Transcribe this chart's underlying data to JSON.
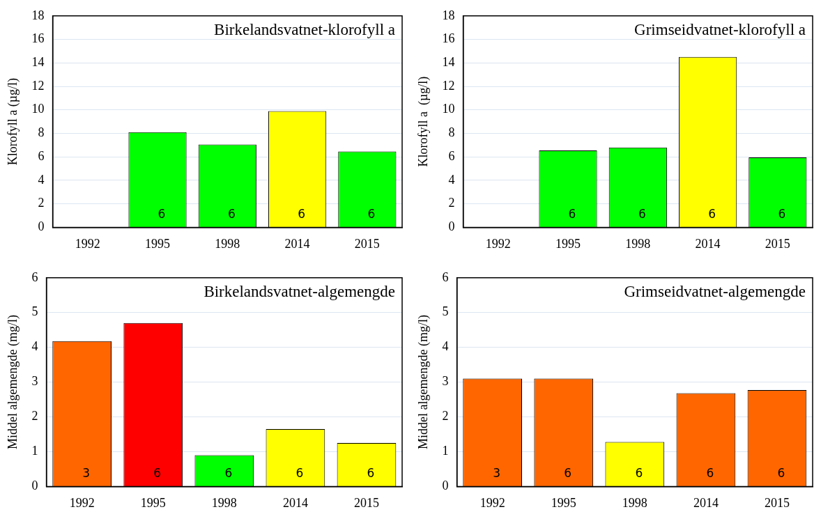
{
  "chart_data": [
    {
      "type": "bar",
      "title": "Birkelandsvatnet-klorofyll a",
      "ylabel": "Klorofyll a (µg/l)",
      "categories": [
        "1992",
        "1995",
        "1998",
        "2014",
        "2015"
      ],
      "values": [
        null,
        8.1,
        7.05,
        9.9,
        6.45
      ],
      "colors": [
        "#00ff00",
        "#00ff00",
        "#00ff00",
        "#ffff00",
        "#00ff00"
      ],
      "ylim": [
        0,
        18
      ],
      "yticks": [
        0,
        2,
        4,
        6,
        8,
        10,
        12,
        14,
        16,
        18
      ],
      "grid": "y",
      "annotations": [
        "6",
        "6",
        "6",
        "6"
      ]
    },
    {
      "type": "bar",
      "title": "Grimseidvatnet-klorofyll a",
      "ylabel": "Klorofyll a  (µg/l)",
      "categories": [
        "1992",
        "1995",
        "1998",
        "2014",
        "2015"
      ],
      "values": [
        null,
        6.55,
        6.8,
        14.5,
        5.95
      ],
      "colors": [
        "#00ff00",
        "#00ff00",
        "#00ff00",
        "#ffff00",
        "#00ff00"
      ],
      "ylim": [
        0,
        18
      ],
      "yticks": [
        0,
        2,
        4,
        6,
        8,
        10,
        12,
        14,
        16,
        18
      ],
      "grid": "y",
      "annotations": [
        "6",
        "6",
        "6",
        "6"
      ]
    },
    {
      "type": "bar",
      "title": "Birkelandsvatnet-algemengde",
      "ylabel": "Middel algemengde (mg/l)",
      "categories": [
        "1992",
        "1995",
        "1998",
        "2014",
        "2015"
      ],
      "values": [
        4.18,
        4.7,
        0.9,
        1.65,
        1.25
      ],
      "colors": [
        "#ff6600",
        "#ff0000",
        "#00ff00",
        "#ffff00",
        "#ffff00"
      ],
      "ylim": [
        0,
        6
      ],
      "yticks": [
        0,
        1,
        2,
        3,
        4,
        5,
        6
      ],
      "grid": "y",
      "annotations": [
        "3",
        "6",
        "6",
        "6",
        "6"
      ]
    },
    {
      "type": "bar",
      "title": "Grimseidvatnet-algemengde",
      "ylabel": "Middel algemengde (mg/l)",
      "categories": [
        "1992",
        "1995",
        "1998",
        "2014",
        "2015"
      ],
      "values": [
        3.1,
        3.1,
        1.28,
        2.68,
        2.77
      ],
      "colors": [
        "#ff6600",
        "#ff6600",
        "#ffff00",
        "#ff6600",
        "#ff6600"
      ],
      "ylim": [
        0,
        6
      ],
      "yticks": [
        0,
        1,
        2,
        3,
        4,
        5,
        6
      ],
      "grid": "y",
      "annotations": [
        "3",
        "6",
        "6",
        "6",
        "6"
      ]
    }
  ]
}
